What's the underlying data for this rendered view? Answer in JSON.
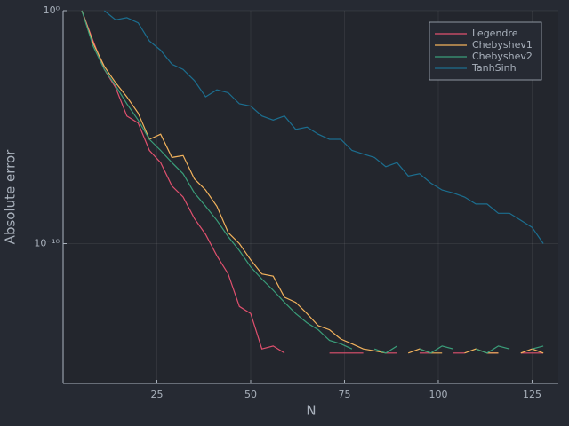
{
  "chart_data": {
    "type": "line",
    "xlabel": "N",
    "ylabel": "Absolute error",
    "yscale": "log",
    "grid": true,
    "legend": "top-right",
    "xlim": [
      0,
      132
    ],
    "ylim": [
      1e-16,
      1
    ],
    "xticks": [
      25,
      50,
      75,
      100,
      125
    ],
    "yticks": [
      {
        "value": 1,
        "label": "10⁰"
      },
      {
        "value": 1e-10,
        "label": "10⁻¹⁰"
      }
    ],
    "x": [
      5,
      8,
      11,
      14,
      17,
      20,
      23,
      26,
      29,
      32,
      35,
      38,
      41,
      44,
      47,
      50,
      53,
      56,
      59,
      62,
      65,
      68,
      71,
      74,
      77,
      80,
      83,
      86,
      89,
      92,
      95,
      98,
      101,
      104,
      107,
      110,
      113,
      116,
      119,
      122,
      125,
      128
    ],
    "series": [
      {
        "name": "Legendre",
        "color": "#e0506e",
        "values": [
          1,
          0.05,
          0.003,
          0.0005,
          3e-05,
          1.5e-05,
          1e-06,
          3e-07,
          3e-08,
          1e-08,
          1.2e-09,
          2.5e-10,
          3e-11,
          5e-12,
          2e-13,
          1e-13,
          3e-15,
          4e-15,
          2e-15,
          null,
          2e-15,
          null,
          2e-15,
          2e-15,
          2e-15,
          2e-15,
          null,
          2e-15,
          2e-15,
          null,
          2e-15,
          2e-15,
          null,
          2e-15,
          2e-15,
          null,
          2e-15,
          2e-15,
          null,
          2e-15,
          2e-15,
          2e-15
        ]
      },
      {
        "name": "Chebyshev1",
        "color": "#f2b25c",
        "values": [
          1,
          0.04,
          0.004,
          0.0008,
          0.0002,
          4e-05,
          3e-06,
          5e-06,
          5e-07,
          6e-07,
          6e-08,
          2e-08,
          4e-09,
          3e-10,
          1e-10,
          2e-11,
          5e-12,
          4e-12,
          5e-13,
          3e-13,
          1e-13,
          3e-14,
          2e-14,
          8e-15,
          5e-15,
          3e-15,
          2.5e-15,
          2e-15,
          null,
          2e-15,
          3e-15,
          2e-15,
          2e-15,
          null,
          2e-15,
          3e-15,
          2e-15,
          2e-15,
          null,
          2e-15,
          3e-15,
          2e-15
        ]
      },
      {
        "name": "Chebyshev2",
        "color": "#3a9e7a",
        "values": [
          1,
          0.03,
          0.003,
          0.0006,
          0.0001,
          2e-05,
          3e-06,
          1e-06,
          3e-07,
          1e-07,
          1.5e-08,
          4e-09,
          1e-09,
          2e-10,
          5e-11,
          1e-11,
          3e-12,
          1e-12,
          3e-13,
          1e-13,
          4e-14,
          2e-14,
          7e-15,
          5e-15,
          3e-15,
          null,
          3e-15,
          2e-15,
          4e-15,
          null,
          3e-15,
          2e-15,
          4e-15,
          3e-15,
          null,
          3e-15,
          2e-15,
          4e-15,
          3e-15,
          null,
          3e-15,
          4e-15
        ]
      },
      {
        "name": "TanhSinh",
        "color": "#1c6e8f",
        "values": [
          null,
          null,
          1,
          0.4,
          0.5,
          0.3,
          0.05,
          0.02,
          0.005,
          0.003,
          0.001,
          0.0002,
          0.0004,
          0.0003,
          0.0001,
          8e-05,
          3e-05,
          2e-05,
          3e-05,
          8e-06,
          1e-05,
          5e-06,
          3e-06,
          3e-06,
          1e-06,
          7e-07,
          5e-07,
          2e-07,
          3e-07,
          8e-08,
          1e-07,
          4e-08,
          2e-08,
          1.5e-08,
          1e-08,
          5e-09,
          5e-09,
          2e-09,
          2e-09,
          1e-09,
          5e-10,
          1e-10
        ]
      }
    ]
  }
}
